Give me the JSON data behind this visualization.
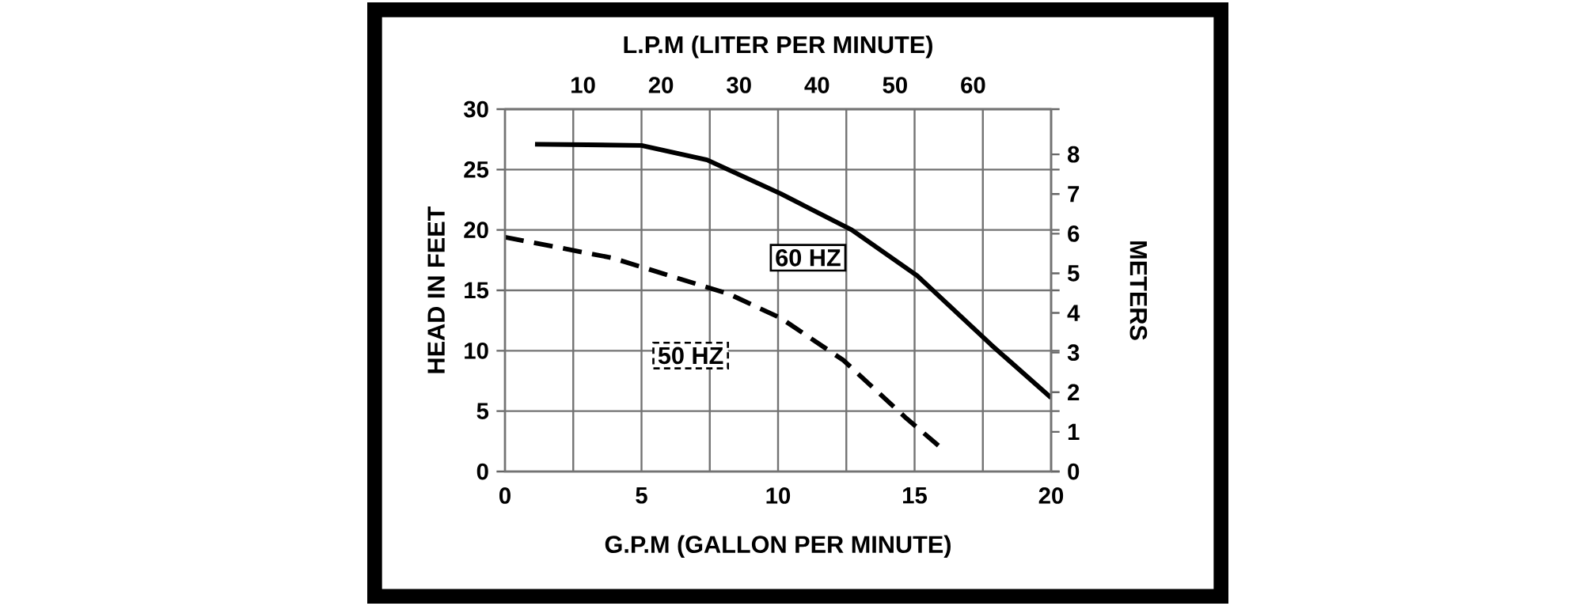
{
  "chart_data": {
    "type": "line",
    "xlabel": "G.P.M (GALLON PER MINUTE)",
    "ylabel": "HEAD IN FEET",
    "x2label": "L.P.M (LITER PER MINUTE)",
    "y2label": "METERS",
    "xlim": [
      0,
      20
    ],
    "xticks": [
      0,
      {
        "value": 2.5,
        "label": null
      },
      5,
      {
        "value": 7.5,
        "label": null
      },
      10,
      {
        "value": 12.5,
        "label": null
      },
      15,
      {
        "value": 17.5,
        "label": null
      },
      20
    ],
    "ylim": [
      0,
      30
    ],
    "yticks": [
      0,
      5,
      10,
      15,
      20,
      25,
      30
    ],
    "x2lim": [
      0,
      70
    ],
    "x2ticks": [
      10,
      20,
      30,
      40,
      50,
      60
    ],
    "y2lim": [
      0,
      9.14
    ],
    "y2ticks": [
      0,
      1,
      2,
      3,
      4,
      5,
      6,
      7,
      8
    ],
    "grid": true,
    "series": [
      {
        "name": "60 HZ",
        "color": "#000000",
        "line_style": "solid",
        "x": [
          1.1,
          5,
          7.4,
          10.1,
          12.7,
          15.1,
          17.8,
          20
        ],
        "values": [
          27.1,
          27.0,
          25.8,
          23.0,
          20.0,
          16.2,
          10.5,
          6.1
        ]
      },
      {
        "name": "50 HZ",
        "color": "#000000",
        "line_style": "dashed",
        "x": [
          0,
          3.9,
          8.2,
          10.1,
          12.4,
          14.7,
          15.9
        ],
        "values": [
          19.4,
          17.7,
          14.7,
          12.7,
          9.2,
          4.4,
          2.1
        ]
      }
    ]
  }
}
